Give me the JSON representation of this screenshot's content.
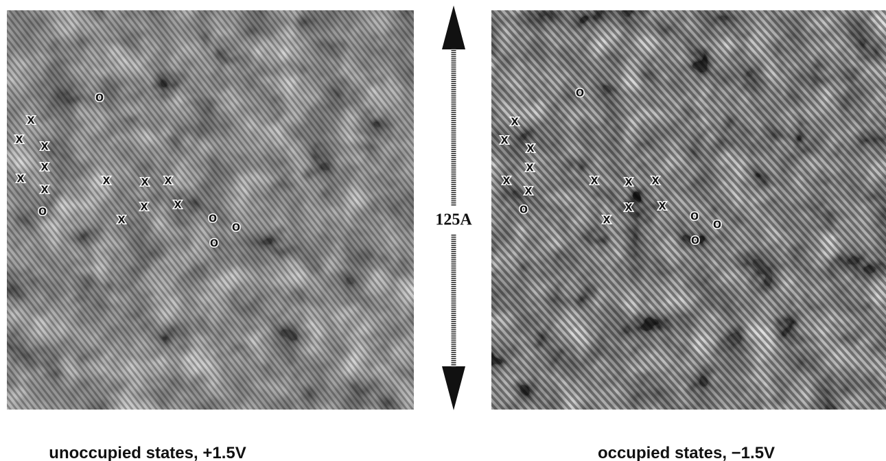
{
  "scale_bar": {
    "label": "125A"
  },
  "panels": [
    {
      "caption": "unoccupied states, +1.5V",
      "markers": [
        "o",
        "x",
        "x",
        "x",
        "x",
        "x",
        "x",
        "o",
        "x",
        "x",
        "x",
        "x",
        "x",
        "x",
        "o",
        "o",
        "o"
      ]
    },
    {
      "caption": "occupied states, −1.5V",
      "markers": [
        "o",
        "x",
        "x",
        "x",
        "x",
        "x",
        "x",
        "o",
        "x",
        "x",
        "x",
        "x",
        "x",
        "x",
        "o",
        "o",
        "o"
      ]
    }
  ]
}
